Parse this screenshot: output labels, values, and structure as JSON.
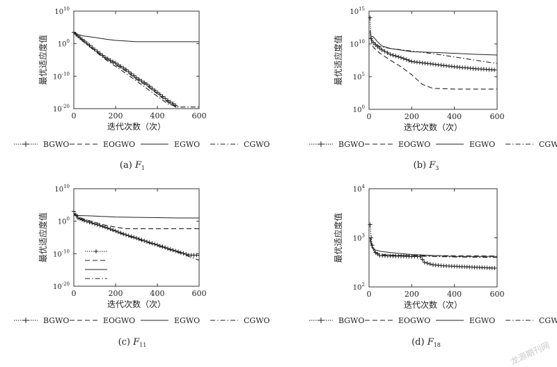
{
  "chart_data": [
    {
      "type": "line",
      "caption_prefix": "(a)",
      "caption_fn": "F",
      "caption_sub": "1",
      "xlabel": "迭代次数（次）",
      "ylabel": "最优适应度值",
      "yscale": "log",
      "xlim": [
        0,
        600
      ],
      "ylim_exp": [
        -20,
        10
      ],
      "xticks": [
        "0",
        "200",
        "400",
        "600"
      ],
      "yticks": [
        {
          "base": "10",
          "exp": "10",
          "v": 10
        },
        {
          "base": "10",
          "exp": "0",
          "v": 0
        },
        {
          "base": "10",
          "exp": "-10",
          "v": -10
        },
        {
          "base": "10",
          "exp": "-20",
          "v": -20
        }
      ],
      "series": [
        {
          "name": "BGWO",
          "style": "plus",
          "points": [
            [
              0,
              3.5
            ],
            [
              20,
              2.3
            ],
            [
              50,
              0.8
            ],
            [
              100,
              -1.8
            ],
            [
              150,
              -4.2
            ],
            [
              200,
              -6.0
            ],
            [
              250,
              -8.0
            ],
            [
              300,
              -10.5
            ],
            [
              350,
              -12.5
            ],
            [
              400,
              -15.0
            ],
            [
              450,
              -17.5
            ],
            [
              500,
              -19.5
            ]
          ]
        },
        {
          "name": "EOGWO",
          "style": "dash",
          "points": [
            [
              0,
              3.5
            ],
            [
              20,
              2.3
            ],
            [
              50,
              0.6
            ],
            [
              100,
              -2.0
            ],
            [
              150,
              -4.5
            ],
            [
              200,
              -6.5
            ],
            [
              250,
              -8.5
            ],
            [
              300,
              -11.0
            ],
            [
              350,
              -13.0
            ],
            [
              400,
              -15.5
            ],
            [
              450,
              -18.0
            ],
            [
              500,
              -20.0
            ]
          ]
        },
        {
          "name": "EGWO",
          "style": "solid",
          "points": [
            [
              0,
              3.6
            ],
            [
              20,
              2.8
            ],
            [
              50,
              2.3
            ],
            [
              100,
              1.9
            ],
            [
              150,
              1.4
            ],
            [
              200,
              1.0
            ],
            [
              250,
              0.8
            ],
            [
              300,
              0.6
            ],
            [
              400,
              0.6
            ],
            [
              600,
              0.6
            ]
          ]
        },
        {
          "name": "CGWO",
          "style": "dashdot",
          "points": [
            [
              0,
              3.4
            ],
            [
              20,
              2.1
            ],
            [
              50,
              0.4
            ],
            [
              100,
              -2.2
            ],
            [
              150,
              -4.8
            ],
            [
              200,
              -7.0
            ],
            [
              250,
              -9.2
            ],
            [
              300,
              -11.5
            ],
            [
              350,
              -13.8
            ],
            [
              400,
              -16.2
            ],
            [
              450,
              -18.5
            ],
            [
              500,
              -19.5
            ],
            [
              600,
              -19.5
            ]
          ]
        }
      ]
    },
    {
      "type": "line",
      "caption_prefix": "(b)",
      "caption_fn": "F",
      "caption_sub": "3",
      "xlabel": "迭代次数（次）",
      "ylabel": "最优适应度值",
      "yscale": "log",
      "xlim": [
        0,
        600
      ],
      "ylim_exp": [
        0,
        15
      ],
      "xticks": [
        "0",
        "200",
        "400",
        "600"
      ],
      "yticks": [
        {
          "base": "10",
          "exp": "15",
          "v": 15
        },
        {
          "base": "10",
          "exp": "10",
          "v": 10
        },
        {
          "base": "10",
          "exp": "5",
          "v": 5
        },
        {
          "base": "10",
          "exp": "0",
          "v": 0
        }
      ],
      "series": [
        {
          "name": "BGWO",
          "style": "plus",
          "points": [
            [
              5,
              14.0
            ],
            [
              10,
              10.8
            ],
            [
              20,
              10.2
            ],
            [
              40,
              9.6
            ],
            [
              60,
              9.1
            ],
            [
              100,
              8.4
            ],
            [
              150,
              7.9
            ],
            [
              200,
              7.3
            ],
            [
              300,
              6.9
            ],
            [
              400,
              6.5
            ],
            [
              500,
              6.2
            ],
            [
              600,
              6.0
            ]
          ]
        },
        {
          "name": "EOGWO",
          "style": "dash",
          "points": [
            [
              5,
              12.0
            ],
            [
              10,
              10.5
            ],
            [
              20,
              9.5
            ],
            [
              50,
              8.6
            ],
            [
              100,
              7.5
            ],
            [
              150,
              6.5
            ],
            [
              200,
              5.3
            ],
            [
              250,
              3.8
            ],
            [
              300,
              3.2
            ],
            [
              400,
              3.1
            ],
            [
              600,
              3.1
            ]
          ]
        },
        {
          "name": "EGWO",
          "style": "solid",
          "points": [
            [
              5,
              11.2
            ],
            [
              20,
              11.1
            ],
            [
              40,
              10.3
            ],
            [
              60,
              9.7
            ],
            [
              100,
              9.3
            ],
            [
              200,
              8.8
            ],
            [
              300,
              8.7
            ],
            [
              500,
              8.4
            ],
            [
              600,
              8.3
            ]
          ]
        },
        {
          "name": "CGWO",
          "style": "dashdot",
          "points": [
            [
              5,
              11.0
            ],
            [
              20,
              10.3
            ],
            [
              50,
              9.6
            ],
            [
              100,
              9.3
            ],
            [
              200,
              8.9
            ],
            [
              300,
              8.5
            ],
            [
              400,
              8.0
            ],
            [
              500,
              7.5
            ],
            [
              600,
              7.0
            ]
          ]
        }
      ]
    },
    {
      "type": "line",
      "caption_prefix": "(c)",
      "caption_fn": "F",
      "caption_sub": "11",
      "xlabel": "迭代次数（次）",
      "ylabel": "最优适应度值",
      "yscale": "log",
      "xlim": [
        0,
        600
      ],
      "ylim_exp": [
        -20,
        10
      ],
      "xticks": [
        "0",
        "200",
        "400",
        "600"
      ],
      "yticks": [
        {
          "base": "10",
          "exp": "10",
          "v": 10
        },
        {
          "base": "10",
          "exp": "0",
          "v": 0
        },
        {
          "base": "10",
          "exp": "-10",
          "v": -10
        },
        {
          "base": "10",
          "exp": "-20",
          "v": -20
        }
      ],
      "series": [
        {
          "name": "BGWO",
          "style": "plus",
          "points": [
            [
              0,
              3.0
            ],
            [
              20,
              1.0
            ],
            [
              50,
              0.2
            ],
            [
              100,
              -0.8
            ],
            [
              150,
              -1.8
            ],
            [
              200,
              -3.0
            ],
            [
              250,
              -4.2
            ],
            [
              300,
              -5.2
            ],
            [
              350,
              -6.3
            ],
            [
              400,
              -7.3
            ],
            [
              450,
              -8.4
            ],
            [
              500,
              -9.4
            ],
            [
              550,
              -10.4
            ],
            [
              600,
              -10.5
            ]
          ]
        },
        {
          "name": "EOGWO",
          "style": "dash",
          "points": [
            [
              0,
              2.0
            ],
            [
              20,
              1.4
            ],
            [
              50,
              0.6
            ],
            [
              100,
              -0.3
            ],
            [
              150,
              -1.2
            ],
            [
              200,
              -1.8
            ],
            [
              250,
              -2.3
            ],
            [
              300,
              -2.3
            ],
            [
              400,
              -2.3
            ],
            [
              600,
              -2.3
            ]
          ]
        },
        {
          "name": "EGWO",
          "style": "solid",
          "points": [
            [
              0,
              1.8
            ],
            [
              50,
              1.7
            ],
            [
              100,
              1.6
            ],
            [
              200,
              1.3
            ],
            [
              300,
              1.2
            ],
            [
              400,
              1.1
            ],
            [
              500,
              1.0
            ],
            [
              600,
              1.0
            ]
          ]
        },
        {
          "name": "CGWO",
          "style": "dashdot",
          "points": [
            [
              0,
              2.5
            ],
            [
              20,
              0.9
            ],
            [
              50,
              0.1
            ],
            [
              100,
              -0.9
            ],
            [
              150,
              -2.0
            ],
            [
              200,
              -3.2
            ],
            [
              250,
              -4.4
            ],
            [
              300,
              -5.4
            ],
            [
              350,
              -6.5
            ],
            [
              400,
              -7.5
            ],
            [
              450,
              -8.6
            ],
            [
              500,
              -9.6
            ],
            [
              550,
              -10.8
            ],
            [
              600,
              -12.0
            ]
          ]
        }
      ],
      "inset_legend": true
    },
    {
      "type": "line",
      "caption_prefix": "(d)",
      "caption_fn": "F",
      "caption_sub": "18",
      "xlabel": "迭代次数（次）",
      "ylabel": "最优适应度值",
      "yscale": "log",
      "xlim": [
        0,
        600
      ],
      "ylim_exp": [
        2,
        4
      ],
      "xticks": [
        "0",
        "200",
        "400",
        "600"
      ],
      "yticks": [
        {
          "base": "10",
          "exp": "4",
          "v": 4
        },
        {
          "base": "10",
          "exp": "3",
          "v": 3
        },
        {
          "base": "10",
          "exp": "2",
          "v": 2
        }
      ],
      "series": [
        {
          "name": "BGWO",
          "style": "plus",
          "points": [
            [
              5,
              3.27
            ],
            [
              10,
              3.0
            ],
            [
              15,
              2.85
            ],
            [
              30,
              2.7
            ],
            [
              50,
              2.64
            ],
            [
              100,
              2.63
            ],
            [
              200,
              2.62
            ],
            [
              240,
              2.62
            ],
            [
              260,
              2.5
            ],
            [
              300,
              2.45
            ],
            [
              350,
              2.43
            ],
            [
              400,
              2.42
            ],
            [
              600,
              2.38
            ]
          ]
        },
        {
          "name": "EOGWO",
          "style": "dash",
          "points": [
            [
              5,
              3.0
            ],
            [
              15,
              2.8
            ],
            [
              30,
              2.7
            ],
            [
              60,
              2.65
            ],
            [
              200,
              2.64
            ],
            [
              600,
              2.63
            ]
          ]
        },
        {
          "name": "EGWO",
          "style": "solid",
          "points": [
            [
              5,
              3.0
            ],
            [
              15,
              2.82
            ],
            [
              30,
              2.75
            ],
            [
              60,
              2.72
            ],
            [
              100,
              2.7
            ],
            [
              200,
              2.66
            ],
            [
              400,
              2.62
            ],
            [
              600,
              2.62
            ]
          ]
        },
        {
          "name": "CGWO",
          "style": "dashdot",
          "points": [
            [
              5,
              2.95
            ],
            [
              15,
              2.78
            ],
            [
              30,
              2.7
            ],
            [
              60,
              2.66
            ],
            [
              200,
              2.63
            ],
            [
              400,
              2.61
            ],
            [
              600,
              2.6
            ]
          ]
        }
      ]
    }
  ],
  "legend": [
    {
      "name": "BGWO",
      "style": "plus"
    },
    {
      "name": "EOGWO",
      "style": "dash"
    },
    {
      "name": "EGWO",
      "style": "solid"
    },
    {
      "name": "CGWO",
      "style": "dashdot"
    }
  ],
  "watermark": "龙源期刊网",
  "colors": {
    "line": "#222222",
    "axis": "#333333",
    "background": "#ffffff"
  }
}
